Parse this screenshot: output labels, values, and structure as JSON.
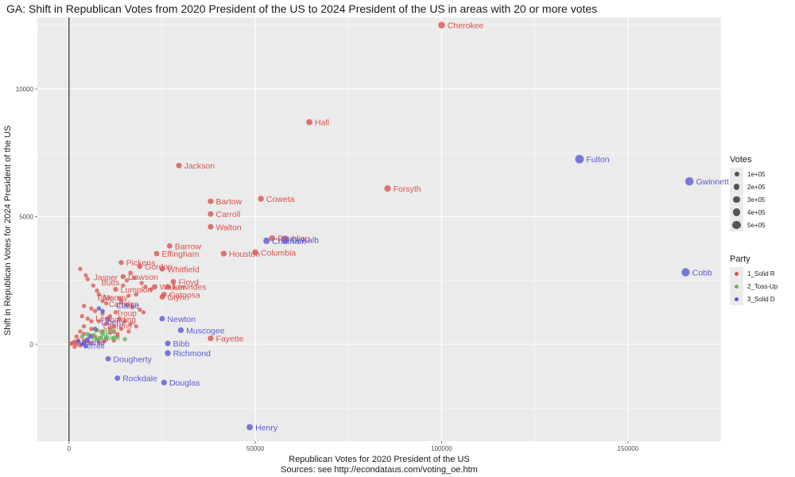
{
  "chart_data": {
    "type": "scatter",
    "title": "GA: Shift in Republican Votes from 2020 President of the US to 2024 President of the US in areas with 20 or more votes",
    "xlabel": "Republican Votes for 2020 President of the US",
    "ylabel": "Shift in Republican Votes for 2024 President of the US",
    "caption": "Sources: see http://econdataus.com/voting_oe.htm",
    "xlim": [
      -8500,
      175000
    ],
    "ylim": [
      -3800,
      12800
    ],
    "x_ticks": [
      0,
      50000,
      100000,
      150000
    ],
    "x_tick_labels": [
      "0",
      "50000",
      "100000",
      "150000"
    ],
    "y_ticks": [
      0,
      5000,
      10000
    ],
    "y_tick_labels": [
      "0",
      "5000",
      "10000"
    ],
    "grid": true,
    "vline_x": 0,
    "colors": {
      "R": "#d9534f",
      "T": "#5cb85c",
      "D": "#5a5ad6"
    },
    "legend_votes": {
      "title": "Votes",
      "entries": [
        {
          "label": "1e+05",
          "size": 3.0
        },
        {
          "label": "2e+05",
          "size": 3.6
        },
        {
          "label": "3e+05",
          "size": 4.2
        },
        {
          "label": "4e+05",
          "size": 4.8
        },
        {
          "label": "5e+05",
          "size": 5.4
        }
      ]
    },
    "legend_party": {
      "title": "Party",
      "entries": [
        {
          "label": "1_Solid R",
          "party": "R"
        },
        {
          "label": "2_Toss-Up",
          "party": "T"
        },
        {
          "label": "3_Solid D",
          "party": "D"
        }
      ]
    },
    "points": [
      {
        "name": "Cherokee",
        "x": 100000,
        "y": 12500,
        "party": "R",
        "votes": 170000
      },
      {
        "name": "Hall",
        "x": 64500,
        "y": 8700,
        "party": "R",
        "votes": 110000
      },
      {
        "name": "Fulton",
        "x": 137000,
        "y": 7250,
        "party": "D",
        "votes": 520000
      },
      {
        "name": "Gwinnett",
        "x": 166500,
        "y": 6380,
        "party": "D",
        "votes": 460000
      },
      {
        "name": "Jackson",
        "x": 29500,
        "y": 7000,
        "party": "R",
        "votes": 50000
      },
      {
        "name": "Forsyth",
        "x": 85500,
        "y": 6100,
        "party": "R",
        "votes": 140000
      },
      {
        "name": "Coweta",
        "x": 51500,
        "y": 5700,
        "party": "R",
        "votes": 80000
      },
      {
        "name": "Bartow",
        "x": 38000,
        "y": 5600,
        "party": "R",
        "votes": 60000
      },
      {
        "name": "Carroll",
        "x": 38000,
        "y": 5100,
        "party": "R",
        "votes": 60000
      },
      {
        "name": "Walton",
        "x": 38000,
        "y": 4600,
        "party": "R",
        "votes": 55000
      },
      {
        "name": "Barrow",
        "x": 27000,
        "y": 3850,
        "party": "R",
        "votes": 45000
      },
      {
        "name": "Effingham",
        "x": 23500,
        "y": 3550,
        "party": "R",
        "votes": 40000
      },
      {
        "name": "Houston",
        "x": 41500,
        "y": 3550,
        "party": "R",
        "votes": 75000
      },
      {
        "name": "Columbia",
        "x": 50000,
        "y": 3600,
        "party": "R",
        "votes": 85000
      },
      {
        "name": "Paulding",
        "x": 54500,
        "y": 4150,
        "party": "R",
        "votes": 90000
      },
      {
        "name": "Chatham",
        "x": 53000,
        "y": 4050,
        "party": "D",
        "votes": 140000
      },
      {
        "name": "DeKalb",
        "x": 58000,
        "y": 4100,
        "party": "D",
        "votes": 370000
      },
      {
        "name": "Cobb",
        "x": 165500,
        "y": 2820,
        "party": "D",
        "votes": 410000
      },
      {
        "name": "Pickens",
        "x": 14000,
        "y": 3200,
        "party": "R",
        "votes": 20000
      },
      {
        "name": "Gordon",
        "x": 19000,
        "y": 3050,
        "party": "R",
        "votes": 28000
      },
      {
        "name": "Whitfield",
        "x": 25000,
        "y": 2950,
        "party": "R",
        "votes": 40000
      },
      {
        "name": "Dawson",
        "x": 14500,
        "y": 2650,
        "party": "R",
        "votes": 20000
      },
      {
        "name": "Floyd",
        "x": 28000,
        "y": 2450,
        "party": "R",
        "votes": 40000
      },
      {
        "name": "Walker",
        "x": 23000,
        "y": 2250,
        "party": "R",
        "votes": 30000
      },
      {
        "name": "Lowndes",
        "x": 26500,
        "y": 2250,
        "party": "R",
        "votes": 45000
      },
      {
        "name": "Catoosa",
        "x": 25500,
        "y": 1950,
        "party": "R",
        "votes": 35000
      },
      {
        "name": "Lumpkin",
        "x": 12500,
        "y": 2150,
        "party": "R",
        "votes": 16000
      },
      {
        "name": "Glynn",
        "x": 25000,
        "y": 1850,
        "party": "R",
        "votes": 38000
      },
      {
        "name": "Newton",
        "x": 25000,
        "y": 1000,
        "party": "D",
        "votes": 55000
      },
      {
        "name": "Muscogee",
        "x": 30000,
        "y": 550,
        "party": "D",
        "votes": 75000
      },
      {
        "name": "Fayette",
        "x": 38000,
        "y": 230,
        "party": "R",
        "votes": 70000
      },
      {
        "name": "Bibb",
        "x": 26500,
        "y": 30,
        "party": "D",
        "votes": 60000
      },
      {
        "name": "Richmond",
        "x": 26500,
        "y": -350,
        "party": "D",
        "votes": 80000
      },
      {
        "name": "Dougherty",
        "x": 10500,
        "y": -570,
        "party": "D",
        "votes": 35000
      },
      {
        "name": "Rockdale",
        "x": 13000,
        "y": -1330,
        "party": "D",
        "votes": 45000
      },
      {
        "name": "Douglas",
        "x": 25500,
        "y": -1500,
        "party": "D",
        "votes": 65000
      },
      {
        "name": "Henry",
        "x": 48500,
        "y": -3250,
        "party": "D",
        "votes": 120000
      }
    ],
    "cluster_labels": [
      {
        "name": "Jasper",
        "x": 6000,
        "y": 2600,
        "party": "R"
      },
      {
        "name": "Butts",
        "x": 8000,
        "y": 2400,
        "party": "R"
      },
      {
        "name": "Pike",
        "x": 7000,
        "y": 1800,
        "party": "R"
      },
      {
        "name": "Camden",
        "x": 10000,
        "y": 1550,
        "party": "R"
      },
      {
        "name": "Clarke",
        "x": 12000,
        "y": 1500,
        "party": "D"
      },
      {
        "name": "Troup",
        "x": 12000,
        "y": 1200,
        "party": "R"
      },
      {
        "name": "Lee",
        "x": 6500,
        "y": 1000,
        "party": "R"
      },
      {
        "name": "Liberty",
        "x": 8000,
        "y": 850,
        "party": "D"
      },
      {
        "name": "Laurens",
        "x": 8500,
        "y": 700,
        "party": "R"
      },
      {
        "name": "Peach",
        "x": 6000,
        "y": 500,
        "party": "T"
      },
      {
        "name": "Baldwin",
        "x": 5500,
        "y": 250,
        "party": "T"
      },
      {
        "name": "Burke",
        "x": 3500,
        "y": 60,
        "party": "D"
      },
      {
        "name": "Terrell",
        "x": 3000,
        "y": -80,
        "party": "D"
      },
      {
        "name": "Spalding",
        "x": 9000,
        "y": 950,
        "party": "R"
      },
      {
        "name": "Murray",
        "x": 8500,
        "y": 1800,
        "party": "R"
      }
    ],
    "cluster_dots": [
      [
        3000,
        2950
      ],
      [
        4500,
        2700
      ],
      [
        5000,
        2550
      ],
      [
        6500,
        2300
      ],
      [
        7500,
        2100
      ],
      [
        8000,
        1950
      ],
      [
        9000,
        1700
      ],
      [
        10000,
        1600
      ],
      [
        4000,
        1500
      ],
      [
        6000,
        1400
      ],
      [
        7000,
        1300
      ],
      [
        9000,
        1200
      ],
      [
        11000,
        1100
      ],
      [
        3500,
        1100
      ],
      [
        5000,
        1000
      ],
      [
        6000,
        900
      ],
      [
        8000,
        900
      ],
      [
        10000,
        800
      ],
      [
        12000,
        700
      ],
      [
        4000,
        700
      ],
      [
        6000,
        600
      ],
      [
        7500,
        550
      ],
      [
        9000,
        500
      ],
      [
        11000,
        450
      ],
      [
        13000,
        400
      ],
      [
        3000,
        500
      ],
      [
        4000,
        400
      ],
      [
        5500,
        350
      ],
      [
        7000,
        300
      ],
      [
        8500,
        250
      ],
      [
        10000,
        200
      ],
      [
        12000,
        150
      ],
      [
        2000,
        300
      ],
      [
        2500,
        150
      ],
      [
        1500,
        100
      ],
      [
        1000,
        50
      ],
      [
        2000,
        0
      ],
      [
        3000,
        -50
      ],
      [
        1500,
        -100
      ],
      [
        500,
        20
      ],
      [
        4000,
        150
      ],
      [
        5000,
        100
      ],
      [
        6000,
        50
      ],
      [
        8000,
        80
      ],
      [
        9500,
        120
      ],
      [
        11000,
        600
      ],
      [
        13500,
        1800
      ],
      [
        14500,
        2300
      ],
      [
        15500,
        2500
      ],
      [
        16500,
        2800
      ],
      [
        17500,
        2600
      ],
      [
        19500,
        2400
      ],
      [
        20500,
        2250
      ],
      [
        22000,
        2150
      ],
      [
        18000,
        1950
      ],
      [
        16000,
        1900
      ],
      [
        14000,
        1700
      ],
      [
        15500,
        1550
      ],
      [
        17000,
        1450
      ],
      [
        19000,
        1350
      ],
      [
        20000,
        1250
      ],
      [
        12500,
        1250
      ],
      [
        13500,
        1000
      ],
      [
        15000,
        900
      ],
      [
        16500,
        800
      ],
      [
        18000,
        700
      ],
      [
        14000,
        600
      ],
      [
        12000,
        500
      ],
      [
        16000,
        500
      ],
      [
        13000,
        300
      ]
    ],
    "cluster_dots_blue": [
      [
        2500,
        100
      ],
      [
        3500,
        0
      ],
      [
        4500,
        -80
      ],
      [
        5000,
        200
      ],
      [
        6000,
        300
      ],
      [
        8000,
        1400
      ],
      [
        9000,
        1300
      ],
      [
        10500,
        1000
      ],
      [
        7000,
        600
      ],
      [
        4000,
        50
      ]
    ],
    "cluster_dots_green": [
      [
        5000,
        400
      ],
      [
        6500,
        350
      ],
      [
        7500,
        200
      ],
      [
        9000,
        400
      ],
      [
        10000,
        300
      ],
      [
        15000,
        200
      ],
      [
        12000,
        250
      ],
      [
        3500,
        300
      ]
    ]
  }
}
